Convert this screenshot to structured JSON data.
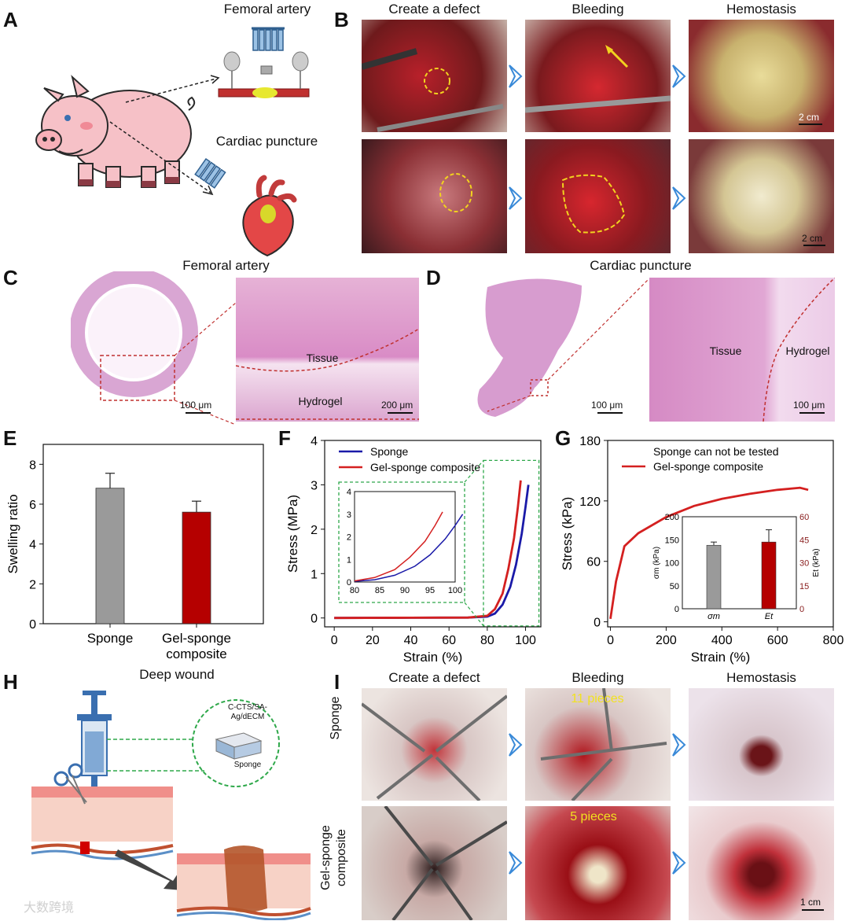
{
  "panels": {
    "A": "A",
    "B": "B",
    "C": "C",
    "D": "D",
    "E": "E",
    "F": "F",
    "G": "G",
    "H": "H",
    "I": "I"
  },
  "panelA": {
    "femoral_label": "Femoral artery",
    "cardiac_label": "Cardiac puncture"
  },
  "panelB": {
    "col_titles": [
      "Create a defect",
      "Bleeding",
      "Hemostasis"
    ],
    "scale_top": "2 cm",
    "scale_bottom": "2 cm"
  },
  "panelC": {
    "title": "Femoral artery",
    "scale_left": "100 μm",
    "scale_right": "200 μm",
    "tissue_label": "Tissue",
    "hydrogel_label": "Hydrogel"
  },
  "panelD": {
    "title": "Cardiac puncture",
    "scale_left": "100 μm",
    "scale_right": "100 μm",
    "tissue_label": "Tissue",
    "hydrogel_label": "Hydrogel"
  },
  "panelH": {
    "title": "Deep wound",
    "material_line1": "C-CTS/SA-",
    "material_line2": "Ag/dECM",
    "sponge_label": "Sponge"
  },
  "panelI": {
    "col_titles": [
      "Create a defect",
      "Bleeding",
      "Hemostasis"
    ],
    "row1_label": "Sponge",
    "row2_label_line1": "Gel-sponge",
    "row2_label_line2": "composite",
    "pieces_sponge": "11 pieces",
    "pieces_gel": "5 pieces",
    "scale": "1 cm"
  },
  "watermark": "大数跨境",
  "chart_data": [
    {
      "id": "E",
      "type": "bar",
      "categories": [
        "Sponge",
        "Gel-sponge composite"
      ],
      "category_lines": [
        [
          "Sponge"
        ],
        [
          "Gel-sponge",
          "composite"
        ]
      ],
      "values": [
        6.8,
        5.6
      ],
      "errors": [
        0.75,
        0.55
      ],
      "colors": [
        "#9a9a9a",
        "#b50000"
      ],
      "ylabel": "Swelling ratio",
      "ylim": [
        0,
        9
      ],
      "yticks": [
        0,
        2,
        4,
        6,
        8
      ]
    },
    {
      "id": "F",
      "type": "line",
      "xlabel": "Strain (%)",
      "ylabel": "Stress (MPa)",
      "xlim": [
        -5,
        108
      ],
      "ylim": [
        -0.2,
        4
      ],
      "xticks": [
        0,
        20,
        40,
        60,
        80,
        100
      ],
      "yticks": [
        0,
        1,
        2,
        3,
        4
      ],
      "legend": [
        "Sponge",
        "Gel-sponge composite"
      ],
      "series": [
        {
          "name": "Sponge",
          "color": "#1a1aa8",
          "x": [
            0,
            40,
            70,
            80,
            84,
            88,
            92,
            95,
            98,
            100,
            101.5
          ],
          "y": [
            0,
            0.005,
            0.01,
            0.03,
            0.1,
            0.3,
            0.7,
            1.2,
            1.9,
            2.5,
            3.0
          ]
        },
        {
          "name": "Gel-sponge composite",
          "color": "#d42020",
          "x": [
            0,
            40,
            70,
            80,
            84,
            88,
            91,
            94,
            96,
            97.5
          ],
          "y": [
            0,
            0.005,
            0.01,
            0.05,
            0.2,
            0.55,
            1.1,
            1.8,
            2.5,
            3.1
          ]
        }
      ],
      "inset": {
        "xlim": [
          80,
          100
        ],
        "ylim": [
          0,
          4
        ],
        "xticks": [
          80,
          85,
          90,
          95,
          100
        ],
        "yticks": [
          0,
          1,
          2,
          3,
          4
        ]
      }
    },
    {
      "id": "G",
      "type": "line",
      "xlabel": "Strain (%)",
      "ylabel": "Stress (kPa)",
      "xlim": [
        -10,
        800
      ],
      "ylim": [
        -5,
        180
      ],
      "xticks": [
        0,
        200,
        400,
        600,
        800
      ],
      "yticks": [
        0,
        60,
        120,
        180
      ],
      "legend_note": "Sponge can not be tested",
      "legend": [
        "Gel-sponge composite"
      ],
      "series": [
        {
          "name": "Gel-sponge composite",
          "color": "#d42020",
          "x": [
            0,
            20,
            50,
            100,
            200,
            300,
            400,
            500,
            600,
            680,
            710
          ],
          "y": [
            3,
            40,
            75,
            88,
            104,
            115,
            122,
            127,
            131,
            133,
            131
          ]
        }
      ],
      "inset": {
        "type": "bar",
        "categories": [
          "σm",
          "Et"
        ],
        "values_left": [
          138
        ],
        "values_right": [
          43.5
        ],
        "errors": [
          7,
          8
        ],
        "colors": [
          "#9a9a9a",
          "#b50000"
        ],
        "ylabel_left": "σm (kPa)",
        "ylabel_right": "Et (kPa)",
        "ylim_left": [
          0,
          200
        ],
        "ylim_right": [
          0,
          60
        ],
        "yticks_left": [
          0,
          50,
          100,
          150,
          200
        ],
        "yticks_right": [
          0,
          15,
          30,
          45,
          60
        ]
      }
    }
  ]
}
